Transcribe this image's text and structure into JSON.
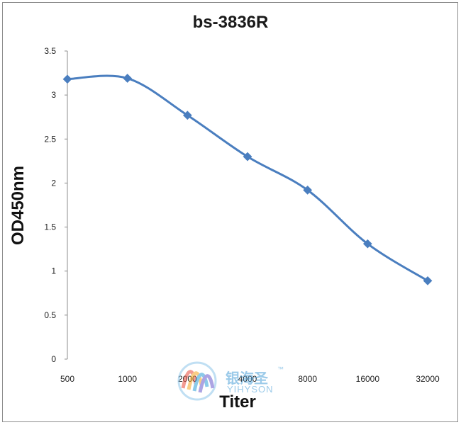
{
  "chart_data": {
    "type": "line",
    "title": "bs-3836R",
    "xlabel": "Titer",
    "ylabel": "OD450nm",
    "categories": [
      "500",
      "1000",
      "2000",
      "4000",
      "8000",
      "16000",
      "32000"
    ],
    "series": [
      {
        "values": [
          3.18,
          3.19,
          2.77,
          2.3,
          1.92,
          1.31,
          0.89
        ],
        "color": "#4a7ebf"
      }
    ],
    "ylim": [
      0,
      3.5
    ],
    "yticks": [
      "0",
      "0.5",
      "1",
      "1.5",
      "2",
      "2.5",
      "3",
      "3.5"
    ],
    "grid": false,
    "legend": "none"
  },
  "watermark": {
    "text_cn": "银海圣",
    "text_en": "YIHYSON",
    "tm": "™",
    "colors": [
      "#e84b3c",
      "#f5a623",
      "#2e9fd8",
      "#6a5acd"
    ]
  }
}
